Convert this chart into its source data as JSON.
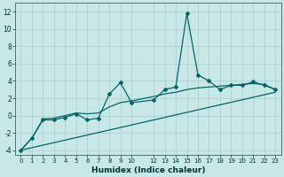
{
  "xlabel": "Humidex (Indice chaleur)",
  "background_color": "#c8e8e8",
  "grid_color": "#a8cece",
  "line_color": "#006666",
  "xlim": [
    -0.5,
    23.5
  ],
  "ylim": [
    -4.5,
    13
  ],
  "xticks": [
    0,
    1,
    2,
    3,
    4,
    5,
    6,
    7,
    8,
    9,
    10,
    12,
    13,
    14,
    15,
    16,
    17,
    18,
    19,
    20,
    21,
    22,
    23
  ],
  "yticks": [
    -4,
    -2,
    0,
    2,
    4,
    6,
    8,
    10,
    12
  ],
  "line1_x": [
    0,
    1,
    2,
    3,
    4,
    5,
    6,
    7,
    8,
    9,
    10,
    12,
    13,
    14,
    15,
    16,
    17,
    18,
    19,
    20,
    21,
    22,
    23
  ],
  "line1_y": [
    -4.0,
    -2.6,
    -0.5,
    -0.5,
    -0.2,
    0.2,
    -0.5,
    -0.3,
    2.5,
    3.8,
    1.5,
    1.8,
    3.0,
    3.3,
    11.8,
    4.7,
    4.0,
    3.0,
    3.5,
    3.5,
    3.9,
    3.5,
    3.0
  ],
  "line2_x": [
    0,
    1,
    2,
    3,
    4,
    5,
    6,
    7,
    8,
    9,
    10,
    12,
    13,
    14,
    15,
    16,
    17,
    18,
    19,
    20,
    21,
    22,
    23
  ],
  "line2_y": [
    -4.0,
    -2.6,
    -0.4,
    -0.3,
    0.0,
    0.3,
    0.2,
    0.3,
    1.0,
    1.5,
    1.7,
    2.2,
    2.5,
    2.7,
    3.0,
    3.2,
    3.3,
    3.4,
    3.5,
    3.6,
    3.7,
    3.6,
    3.0
  ],
  "line3_x": [
    0,
    23
  ],
  "line3_y": [
    -4.0,
    2.7
  ]
}
